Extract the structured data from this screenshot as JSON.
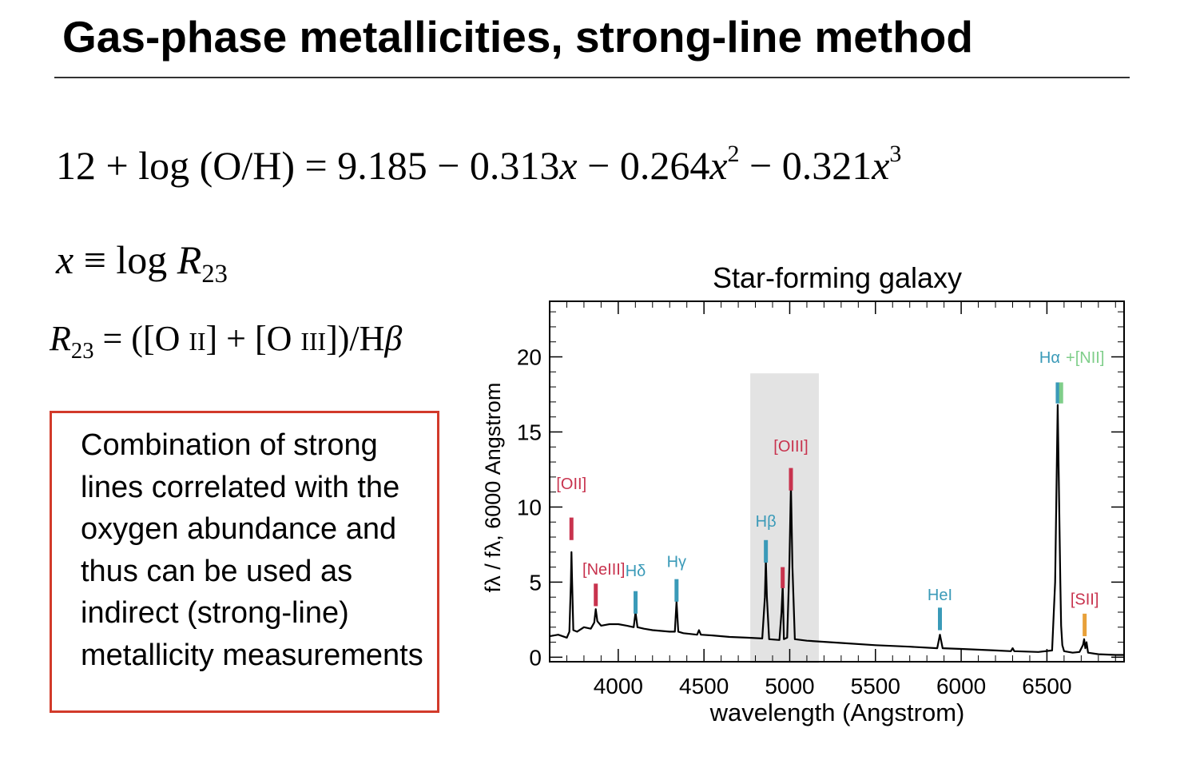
{
  "slide": {
    "title": "Gas-phase metallicities, strong-line method"
  },
  "equations": {
    "main": {
      "lhs_prefix": "12 + log (O/H) = ",
      "c0": "9.185",
      "minus1": " − ",
      "c1": "0.313",
      "var1": "x",
      "minus2": " − ",
      "c2": "0.264",
      "var2": "x",
      "exp2": "2",
      "minus3": " − ",
      "c3": "0.321",
      "var3": "x",
      "exp3": "3"
    },
    "x_def": {
      "x": "x",
      "equiv": " ≡ log ",
      "R": "R",
      "sub": "23"
    },
    "r23_def": {
      "R": "R",
      "sub": "23",
      "rhs_a": " = ([O ",
      "ion_a": "II",
      "rhs_b": "] + [O ",
      "ion_b": "III",
      "rhs_c": "])/H",
      "beta": "β"
    }
  },
  "note": {
    "text": "Combination of strong lines correlated with the oxygen abundance and thus can be used as indirect (strong-line) metallicity measurements"
  },
  "chart_data": {
    "type": "line",
    "title": "Star-forming galaxy",
    "xlabel": "wavelength (Angstrom)",
    "ylabel": "fλ / fλ, 6000 Angstrom",
    "xlim": [
      3600,
      6950
    ],
    "ylim": [
      -0.3,
      23.7
    ],
    "xticks": [
      4000,
      4500,
      5000,
      5500,
      6000,
      6500
    ],
    "yticks": [
      0,
      5,
      10,
      15,
      20
    ],
    "shaded_region": [
      4770,
      5170
    ],
    "series": [
      {
        "color": "#000000",
        "x": [
          3600,
          3650,
          3700,
          3715,
          3724,
          3727,
          3730,
          3738,
          3760,
          3800,
          3840,
          3860,
          3869,
          3878,
          3900,
          3950,
          4000,
          4050,
          4090,
          4101,
          4112,
          4150,
          4200,
          4300,
          4330,
          4340,
          4350,
          4380,
          4460,
          4471,
          4482,
          4550,
          4650,
          4750,
          4840,
          4855,
          4861,
          4867,
          4880,
          4940,
          4952,
          4959,
          4966,
          4985,
          4998,
          5007,
          5016,
          5030,
          5100,
          5300,
          5500,
          5700,
          5860,
          5876,
          5892,
          6000,
          6200,
          6290,
          6300,
          6310,
          6450,
          6530,
          6548,
          6563,
          6578,
          6583,
          6590,
          6600,
          6650,
          6690,
          6710,
          6717,
          6724,
          6731,
          6740,
          6800,
          6900,
          6950
        ],
        "y": [
          1.4,
          1.5,
          1.3,
          1.7,
          5.0,
          7.0,
          5.5,
          1.8,
          1.7,
          2.0,
          1.9,
          2.3,
          3.2,
          2.4,
          2.1,
          2.2,
          2.2,
          2.1,
          2.0,
          3.0,
          2.0,
          1.9,
          1.8,
          1.7,
          1.7,
          3.7,
          1.7,
          1.6,
          1.5,
          1.8,
          1.5,
          1.45,
          1.35,
          1.3,
          1.25,
          4.0,
          6.5,
          4.0,
          1.2,
          1.15,
          3.0,
          4.8,
          1.2,
          1.3,
          6.0,
          11.5,
          6.0,
          1.2,
          1.1,
          0.95,
          0.8,
          0.7,
          0.6,
          1.5,
          0.6,
          0.55,
          0.45,
          0.4,
          0.6,
          0.4,
          0.35,
          0.45,
          5.0,
          16.8,
          5.0,
          2.1,
          0.8,
          0.4,
          0.3,
          0.35,
          0.8,
          1.2,
          0.6,
          1.0,
          0.3,
          0.2,
          0.15,
          0.15
        ]
      }
    ],
    "annotations": [
      {
        "text": "[OII]",
        "x": 3727,
        "color": "#c8334e",
        "tick_color": "#c8334e"
      },
      {
        "text": "[NeIII]",
        "x": 3869,
        "color": "#c8334e",
        "tick_color": "#c8334e"
      },
      {
        "text": "Hδ",
        "x": 4101,
        "color": "#3a9ab8",
        "tick_color": "#3a9ab8"
      },
      {
        "text": "Hγ",
        "x": 4340,
        "color": "#3a9ab8",
        "tick_color": "#3a9ab8"
      },
      {
        "text": "Hβ",
        "x": 4861,
        "color": "#3a9ab8",
        "tick_color": "#3a9ab8"
      },
      {
        "text": "[OIII]",
        "x": 5007,
        "color": "#c8334e",
        "tick_color": "#c8334e"
      },
      {
        "text": "HeI",
        "x": 5876,
        "color": "#3a9ab8",
        "tick_color": "#3a9ab8"
      },
      {
        "text": "Hα",
        "x": 6563,
        "color": "#3a9ab8",
        "tick_color": "#3a9ab8"
      },
      {
        "text": "+[NII]",
        "x": 6583,
        "color": "#7fce8a",
        "tick_color": "#7fce8a"
      },
      {
        "text": "[SII]",
        "x": 6720,
        "color": "#c8334e",
        "tick_color": "#e8a13a"
      }
    ]
  }
}
